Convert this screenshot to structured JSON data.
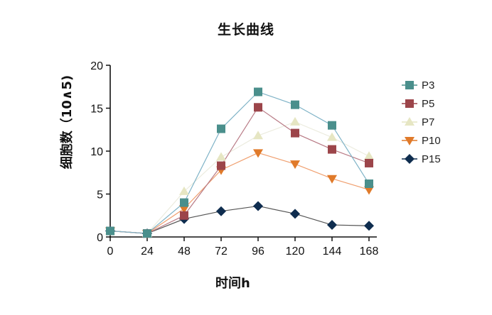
{
  "chart_data": {
    "type": "line",
    "title": "生长曲线",
    "xlabel": "时间h",
    "ylabel": "细胞数（10∧5)",
    "x": [
      0,
      24,
      48,
      72,
      96,
      120,
      144,
      168
    ],
    "xlim": [
      0,
      168
    ],
    "ylim": [
      0,
      20
    ],
    "yticks": [
      0,
      5,
      10,
      15,
      20
    ],
    "xticks": [
      0,
      24,
      48,
      72,
      96,
      120,
      144,
      168
    ],
    "grid": false,
    "legend_position": "right",
    "series": [
      {
        "name": "P3",
        "marker": "square",
        "color": "#4a8f8c",
        "line_color": "#7fb3c7",
        "values": [
          0.7,
          0.4,
          4.0,
          12.6,
          16.9,
          15.4,
          13.0,
          6.2
        ]
      },
      {
        "name": "P5",
        "marker": "square",
        "color": "#9c454a",
        "line_color": "#b87a85",
        "values": [
          0.7,
          0.4,
          2.5,
          8.3,
          15.1,
          12.1,
          10.2,
          8.6
        ]
      },
      {
        "name": "P7",
        "marker": "triangle-up",
        "color": "#e6e6c3",
        "line_color": "#ececdf",
        "values": [
          0.7,
          0.4,
          5.3,
          9.3,
          11.8,
          13.4,
          11.6,
          9.4
        ]
      },
      {
        "name": "P10",
        "marker": "triangle-down",
        "color": "#e07a2a",
        "line_color": "#f0a070",
        "values": [
          0.7,
          0.4,
          3.3,
          7.8,
          9.8,
          8.5,
          6.8,
          5.5
        ]
      },
      {
        "name": "P15",
        "marker": "diamond",
        "color": "#0f2d4f",
        "line_color": "#555555",
        "values": [
          0.7,
          0.4,
          2.1,
          3.0,
          3.6,
          2.7,
          1.4,
          1.3
        ]
      }
    ]
  }
}
